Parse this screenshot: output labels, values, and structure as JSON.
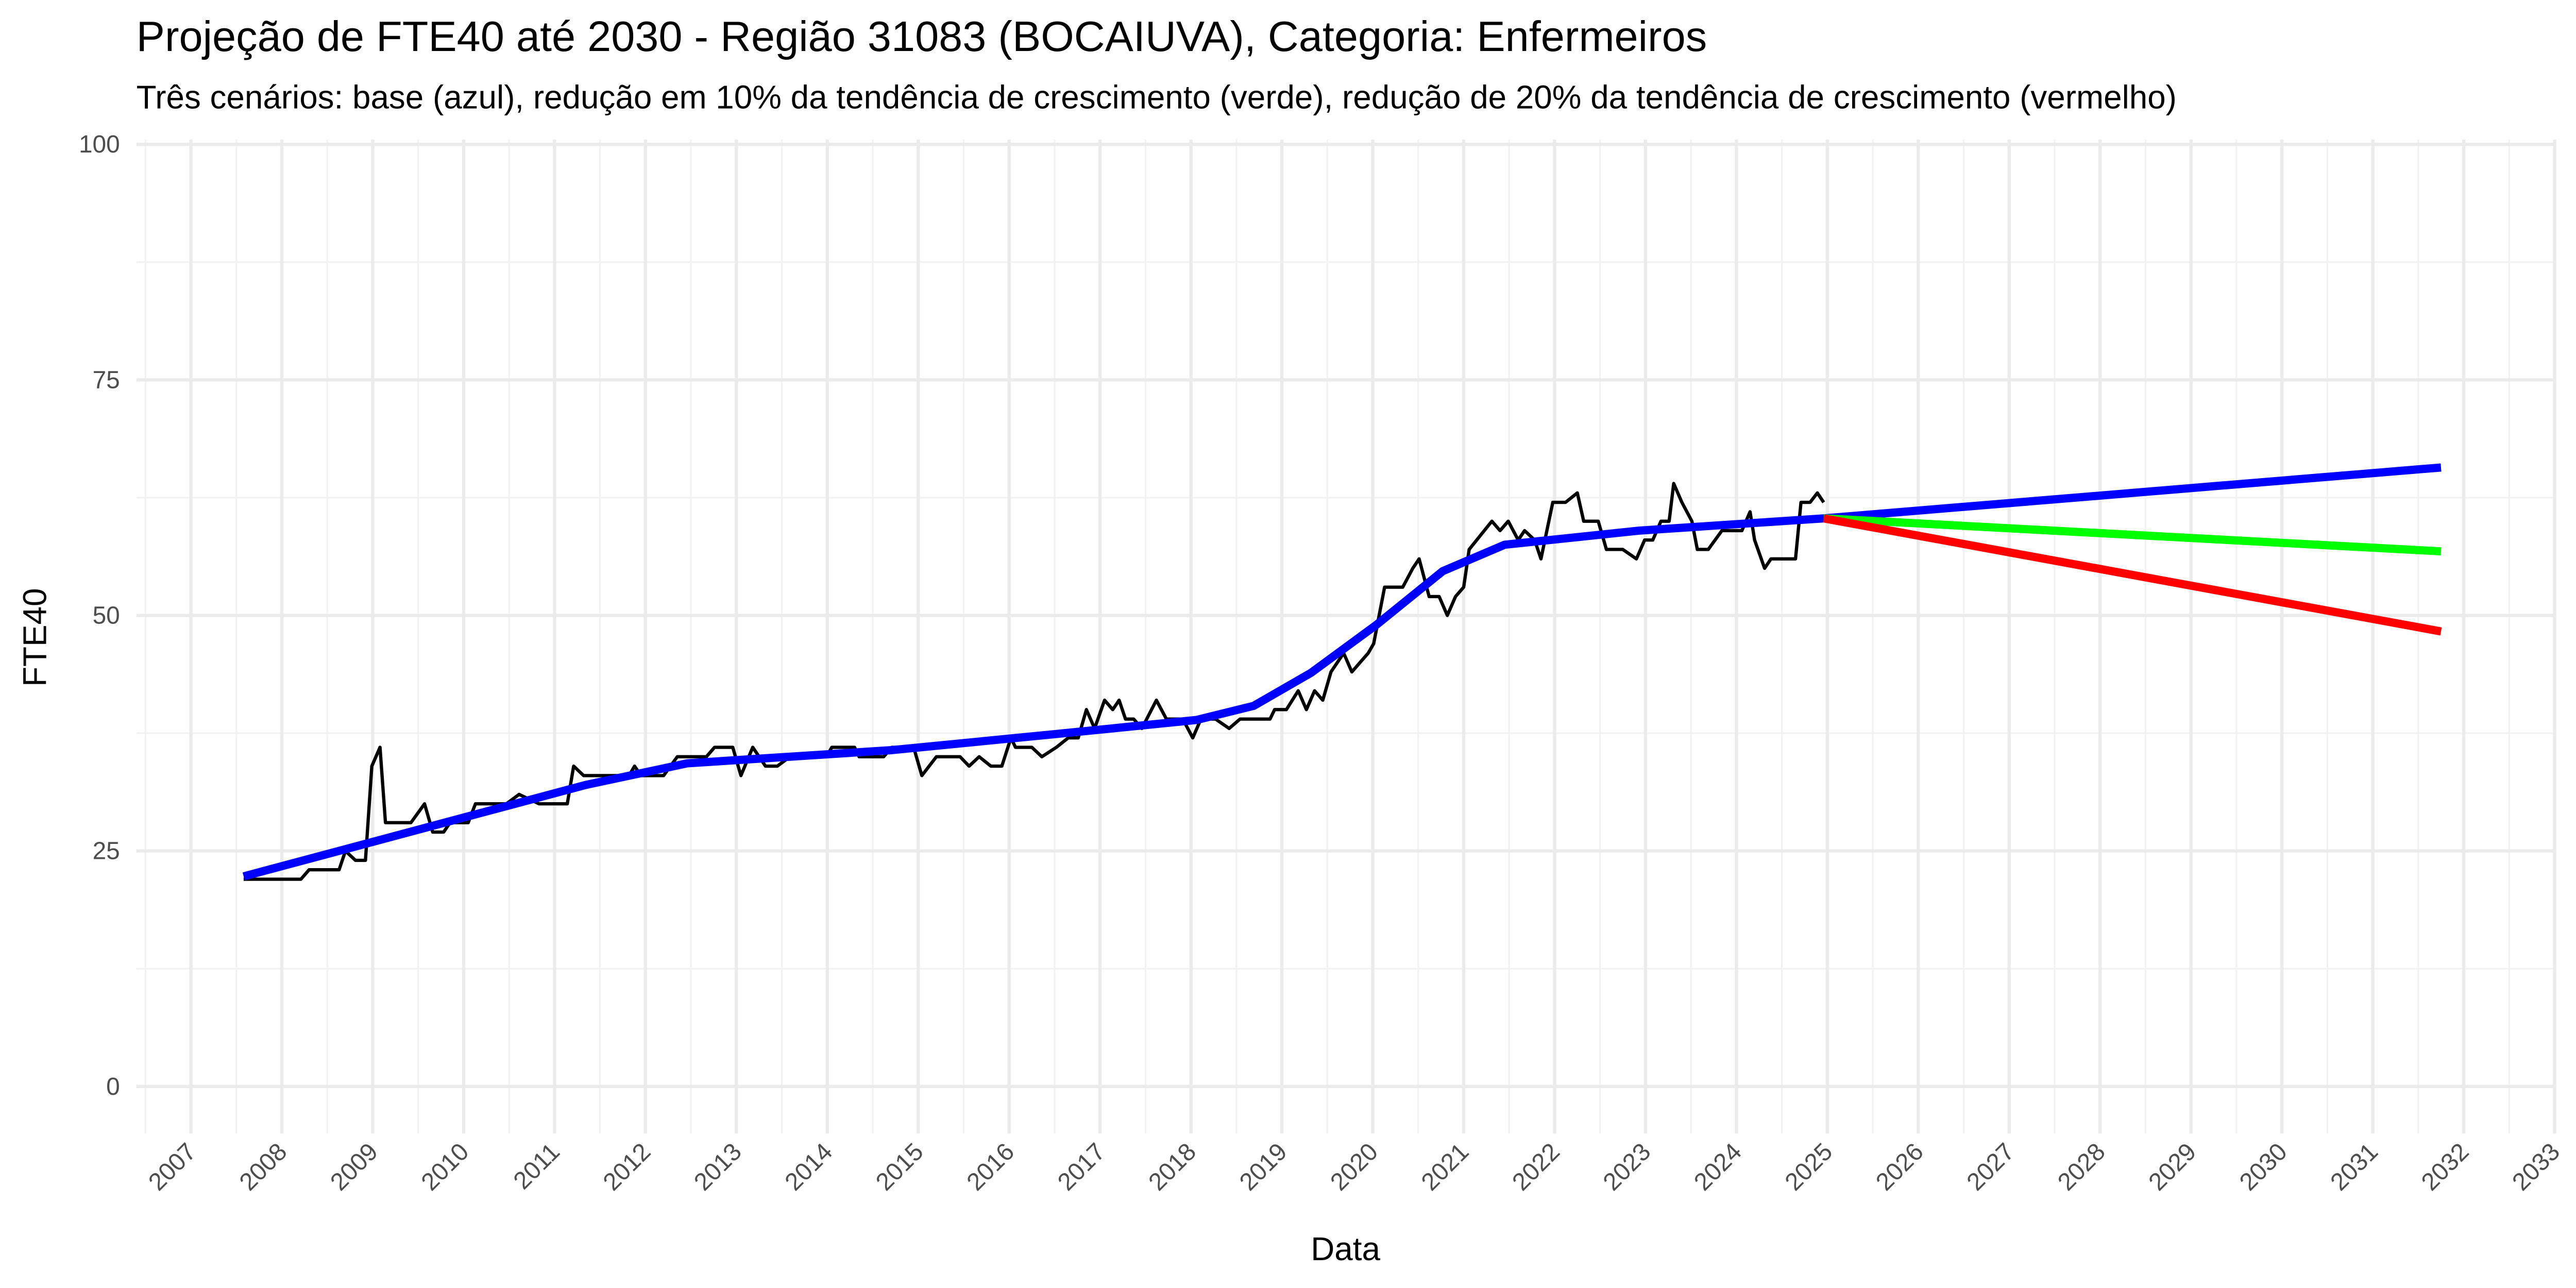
{
  "chart_data": {
    "type": "line",
    "title": "Projeção de FTE40 até 2030 - Região 31083 (BOCAIUVA), Categoria: Enfermeiros",
    "subtitle": "Três cenários: base (azul), redução em 10% da tendência de crescimento (verde), redução de 20% da tendência de crescimento (vermelho)",
    "x_label": "Data",
    "y_label": "FTE40",
    "xlim": [
      2006.4,
      2033
    ],
    "ylim": [
      -5,
      100.5
    ],
    "xticks": [
      2007,
      2008,
      2009,
      2010,
      2011,
      2012,
      2013,
      2014,
      2015,
      2016,
      2017,
      2018,
      2019,
      2020,
      2021,
      2022,
      2023,
      2024,
      2025,
      2026,
      2027,
      2028,
      2029,
      2030,
      2031,
      2032,
      2033
    ],
    "yticks": [
      0,
      25,
      50,
      75,
      100
    ],
    "grid": true,
    "series": [
      {
        "color": "#000000",
        "line_width": 2,
        "x": [
          2007.58,
          2008.21,
          2008.3,
          2008.63,
          2008.7,
          2008.81,
          2008.92,
          2008.99,
          2009.08,
          2009.14,
          2009.42,
          2009.57,
          2009.66,
          2009.78,
          2009.85,
          2010.05,
          2010.13,
          2010.47,
          2010.61,
          2010.83,
          2011.14,
          2011.21,
          2011.32,
          2011.82,
          2011.88,
          2011.95,
          2012.2,
          2012.35,
          2012.67,
          2012.76,
          2012.96,
          2013.05,
          2013.18,
          2013.32,
          2013.45,
          2013.59,
          2013.99,
          2014.05,
          2014.3,
          2014.35,
          2014.62,
          2014.71,
          2014.95,
          2015.04,
          2015.2,
          2015.46,
          2015.56,
          2015.67,
          2015.8,
          2015.92,
          2016.02,
          2016.07,
          2016.25,
          2016.36,
          2016.52,
          2016.65,
          2016.76,
          2016.85,
          2016.94,
          2017.05,
          2017.14,
          2017.21,
          2017.28,
          2017.37,
          2017.46,
          2017.62,
          2017.73,
          2017.8,
          2017.91,
          2018.02,
          2018.11,
          2018.27,
          2018.42,
          2018.54,
          2018.87,
          2018.92,
          2019.05,
          2019.18,
          2019.27,
          2019.36,
          2019.45,
          2019.54,
          2019.68,
          2019.77,
          2019.95,
          2020.01,
          2020.13,
          2020.33,
          2020.44,
          2020.51,
          2020.62,
          2020.73,
          2020.82,
          2020.91,
          2021.0,
          2021.06,
          2021.31,
          2021.4,
          2021.49,
          2021.6,
          2021.67,
          2021.78,
          2021.85,
          2021.98,
          2022.12,
          2022.25,
          2022.32,
          2022.48,
          2022.57,
          2022.75,
          2022.9,
          2022.99,
          2023.08,
          2023.17,
          2023.26,
          2023.31,
          2023.4,
          2023.51,
          2023.57,
          2023.69,
          2023.84,
          2024.06,
          2024.15,
          2024.2,
          2024.31,
          2024.38,
          2024.65,
          2024.71,
          2024.81,
          2024.89,
          2024.96
        ],
        "values": [
          22,
          22,
          23,
          23,
          25,
          24,
          24,
          34,
          36,
          28,
          28,
          30,
          27,
          27,
          28,
          28,
          30,
          30,
          31,
          30,
          30,
          34,
          33,
          33,
          34,
          33,
          33,
          35,
          35,
          36,
          36,
          33,
          36,
          34,
          34,
          35,
          35,
          36,
          36,
          35,
          35,
          36,
          36,
          33,
          35,
          35,
          34,
          35,
          34,
          34,
          37,
          36,
          36,
          35,
          36,
          37,
          37,
          40,
          38,
          41,
          40,
          41,
          39,
          39,
          38,
          41,
          39,
          39,
          39,
          37,
          39,
          39,
          38,
          39,
          39,
          40,
          40,
          42,
          40,
          42,
          41,
          44,
          46,
          44,
          46,
          47,
          53,
          53,
          55,
          56,
          52,
          52,
          50,
          52,
          53,
          57,
          60,
          59,
          60,
          58,
          59,
          58,
          56,
          62,
          62,
          63,
          60,
          60,
          57,
          57,
          56,
          58,
          58,
          60,
          60,
          64,
          62,
          60,
          57,
          57,
          59,
          59,
          61,
          58,
          55,
          56,
          56,
          62,
          62,
          63,
          62
        ]
      },
      {
        "color": "#0000ff",
        "line_width": 5,
        "x": [
          2007.58,
          2011.34,
          2012.46,
          2014.71,
          2016.61,
          2018.06,
          2018.69,
          2019.32,
          2020.04,
          2020.77,
          2021.45,
          2022.93,
          2024.96,
          2031.75
        ],
        "values": [
          22.3,
          32,
          34.3,
          35.7,
          37.5,
          38.9,
          40.4,
          43.9,
          49,
          54.7,
          57.5,
          59,
          60.3,
          65.7
        ]
      },
      {
        "color": "#00ff00",
        "line_width": 5,
        "x": [
          2024.96,
          2031.75
        ],
        "values": [
          60.3,
          56.8
        ]
      },
      {
        "color": "#ff0000",
        "line_width": 5,
        "x": [
          2024.96,
          2031.75
        ],
        "values": [
          60.3,
          48.3
        ]
      }
    ]
  }
}
